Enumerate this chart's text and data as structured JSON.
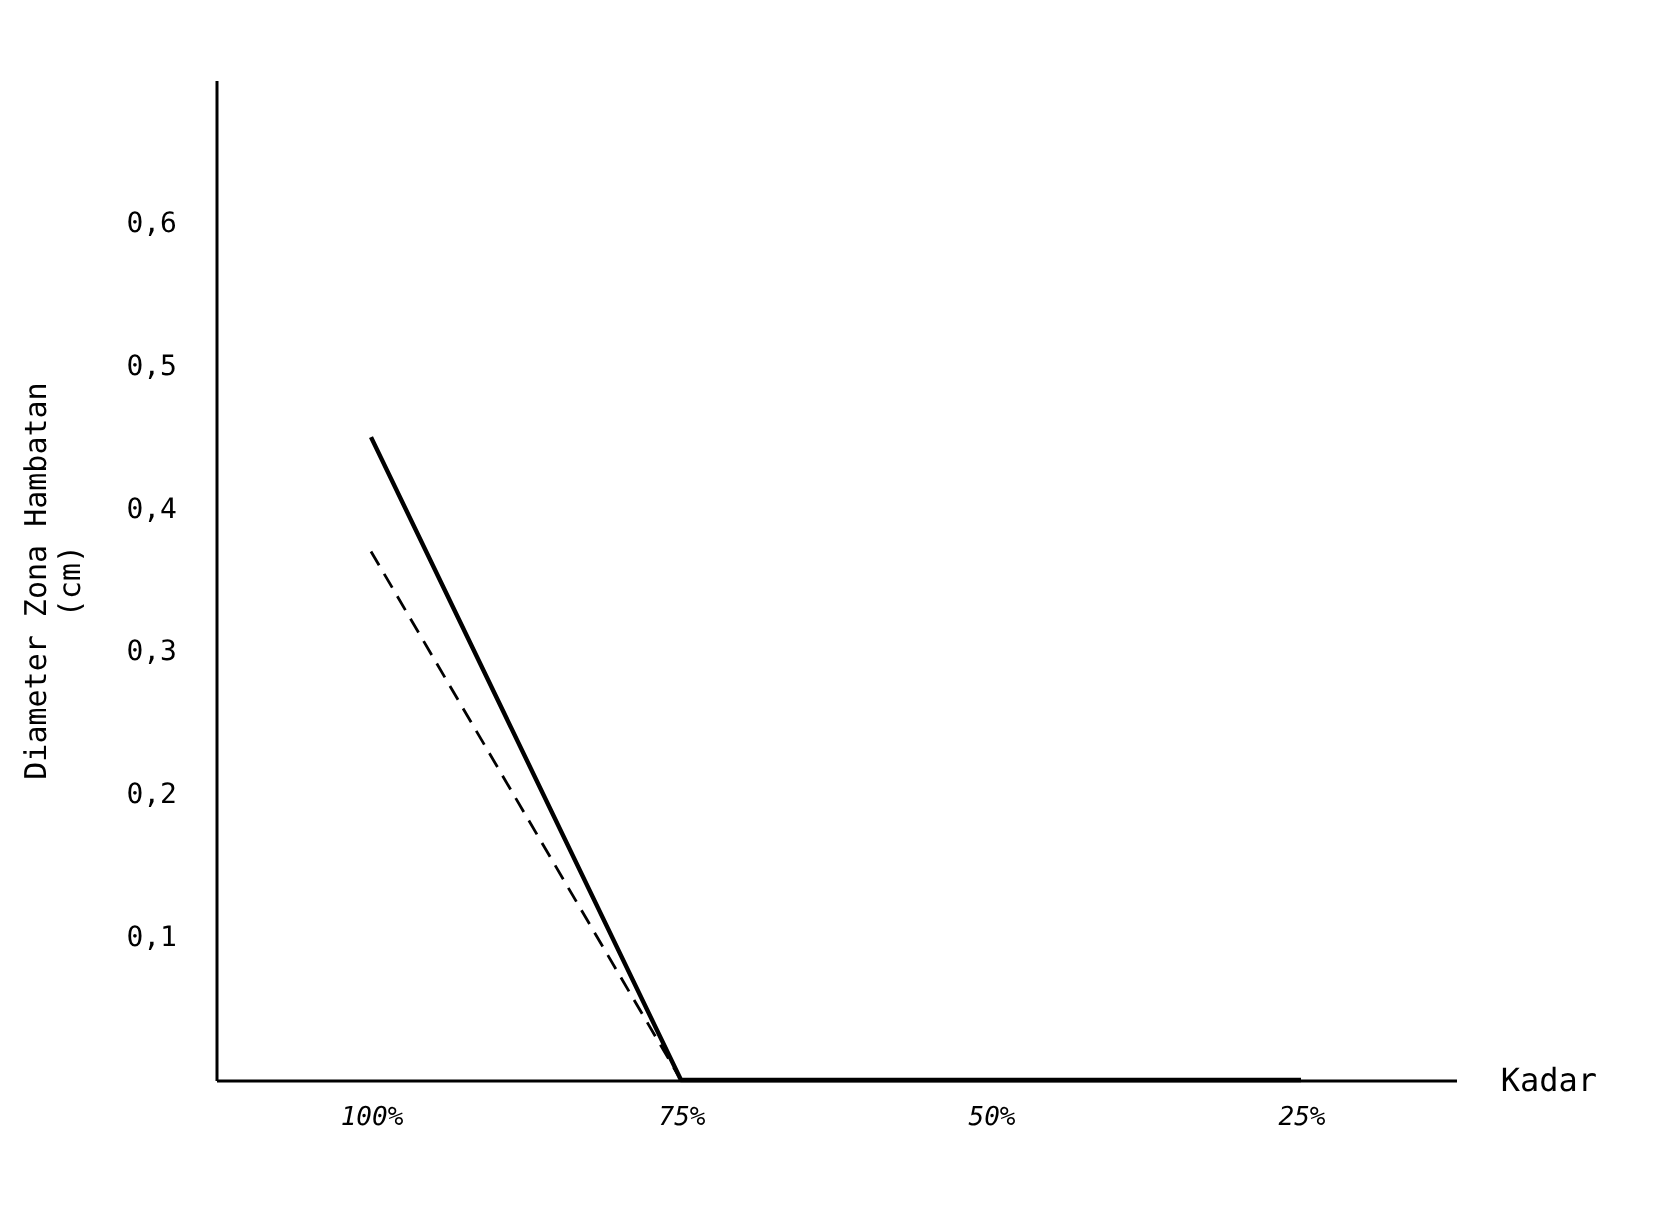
{
  "chart_data": {
    "type": "line",
    "xlabel": "Kadar",
    "ylabel": "Diameter Zona Hambatan (cm)",
    "categories": [
      "100%",
      "75%",
      "50%",
      "25%"
    ],
    "series": [
      {
        "color": "#000000",
        "line_style": "solid",
        "values": [
          0.45,
          0,
          0,
          0
        ]
      },
      {
        "color": "#000000",
        "line_style": "dashed",
        "values": [
          0.37,
          0,
          null,
          null
        ]
      }
    ],
    "ylim": [
      0,
      0.7
    ],
    "yticks": [
      {
        "value": 0.1,
        "label": "0,1"
      },
      {
        "value": 0.2,
        "label": "0,2"
      },
      {
        "value": 0.3,
        "label": "0,3"
      },
      {
        "value": 0.4,
        "label": "0,4"
      },
      {
        "value": 0.5,
        "label": "0,5"
      },
      {
        "value": 0.6,
        "label": "0,6"
      }
    ],
    "grid": false,
    "marker": "none"
  }
}
